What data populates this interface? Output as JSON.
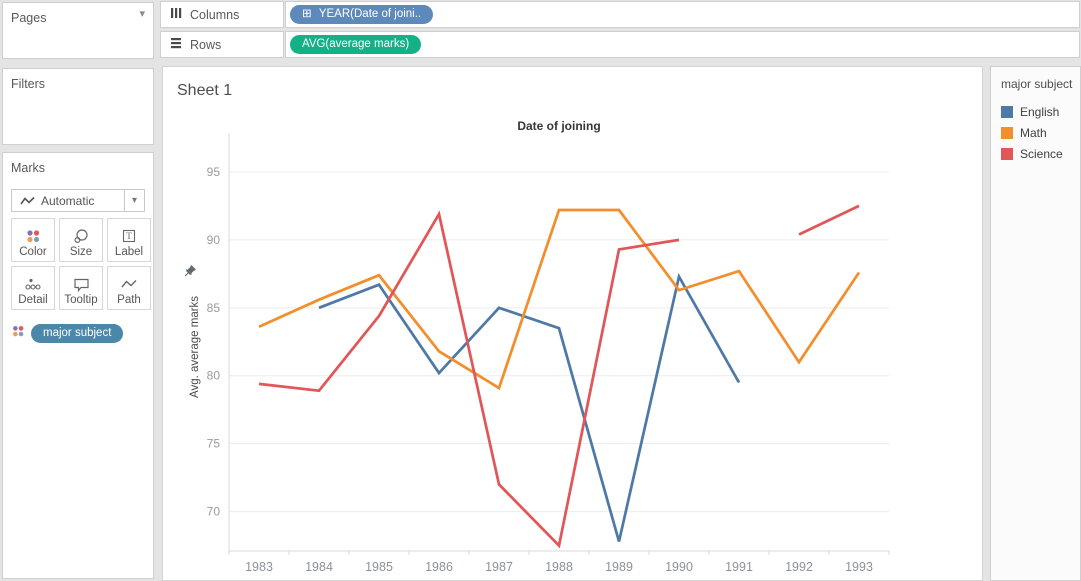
{
  "pages": {
    "label": "Pages"
  },
  "filters": {
    "label": "Filters"
  },
  "marks": {
    "label": "Marks",
    "mark_type": "Automatic",
    "buttons": [
      {
        "label": "Color"
      },
      {
        "label": "Size"
      },
      {
        "label": "Label"
      },
      {
        "label": "Detail"
      },
      {
        "label": "Tooltip"
      },
      {
        "label": "Path"
      }
    ],
    "color_pill": "major subject",
    "color_pill_color": "#4b87a8"
  },
  "shelves": {
    "columns": {
      "label": "Columns",
      "pill": "YEAR(Date of joini..",
      "pill_icon": "⊞",
      "pill_color": "#5d89bb"
    },
    "rows": {
      "label": "Rows",
      "pill": "AVG(average marks)",
      "pill_color": "#14b187"
    }
  },
  "sheet": {
    "title": "Sheet 1"
  },
  "legend": {
    "title": "major subject",
    "items": [
      {
        "label": "English",
        "color": "#4e79a7"
      },
      {
        "label": "Math",
        "color": "#f28e2b"
      },
      {
        "label": "Science",
        "color": "#e15759"
      }
    ]
  },
  "icons": {
    "caret_down": "▾"
  },
  "chart_data": {
    "type": "line",
    "title": "Date of joining",
    "ylabel": "Avg. average marks",
    "xlabel": "",
    "categories": [
      "1983",
      "1984",
      "1985",
      "1986",
      "1987",
      "1988",
      "1989",
      "1990",
      "1991",
      "1992",
      "1993"
    ],
    "series": [
      {
        "name": "English",
        "color": "#4e79a7",
        "values": [
          null,
          85.0,
          86.7,
          80.2,
          85.0,
          83.5,
          67.8,
          87.3,
          79.5,
          null,
          null
        ]
      },
      {
        "name": "Math",
        "color": "#f28e2b",
        "values": [
          83.6,
          85.6,
          87.4,
          81.8,
          79.1,
          92.2,
          92.2,
          86.3,
          87.7,
          81.0,
          87.6
        ]
      },
      {
        "name": "Science",
        "color": "#e15759",
        "values": [
          79.4,
          78.9,
          84.4,
          91.9,
          72.0,
          67.5,
          89.3,
          90.0,
          null,
          90.4,
          92.5
        ]
      }
    ],
    "yticks": [
      70,
      75,
      80,
      85,
      90,
      95
    ],
    "ylim": [
      67.1,
      97.5
    ],
    "grid": "horizontal",
    "legend_position": "right"
  }
}
